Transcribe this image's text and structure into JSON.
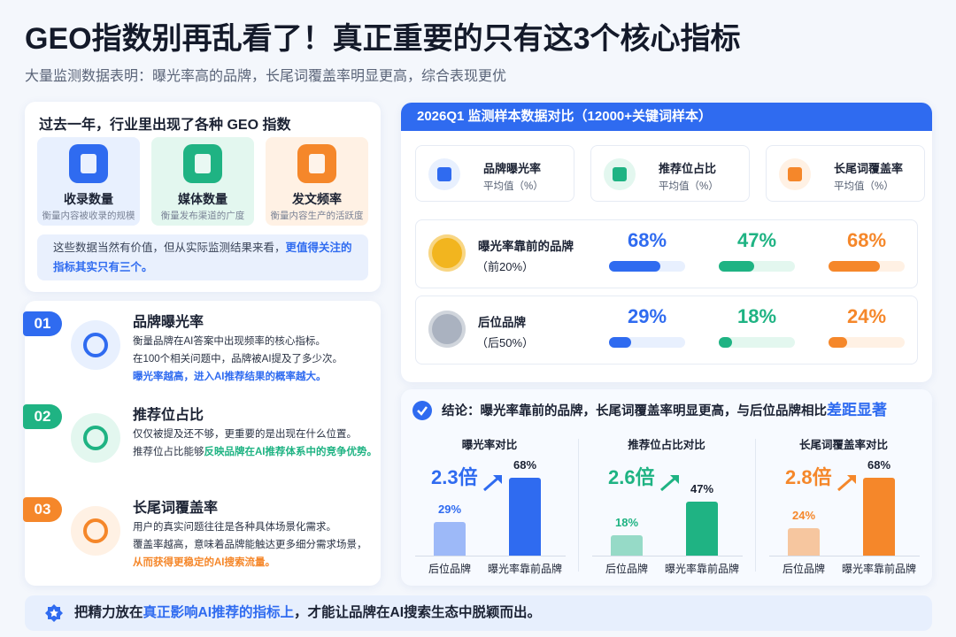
{
  "header": {
    "title": "GEO指数别再乱看了！真正重要的只有这3个核心指标",
    "subtitle": "大量监测数据表明：曝光率高的品牌，长尾词覆盖率明显更高，综合表现更优"
  },
  "intro": {
    "title": "过去一年，行业里出现了各种 GEO 指数",
    "items": [
      {
        "name": "收录数量",
        "desc": "衡量内容被收录的规模"
      },
      {
        "name": "媒体数量",
        "desc": "衡量发布渠道的广度"
      },
      {
        "name": "发文频率",
        "desc": "衡量内容生产的活跃度"
      }
    ],
    "note": "这些数据当然有价值，但从实际监测结果来看，",
    "note_highlight": "更值得关注的指标其实只有三个。"
  },
  "metrics": [
    {
      "num": "01",
      "title": "品牌曝光率",
      "lines": [
        "衡量品牌在AI答案中出现频率的核心指标。",
        "在100个相关问题中，品牌被AI提及了多少次。"
      ],
      "highlight": "曝光率越高，进入AI推荐结果的概率越大。"
    },
    {
      "num": "02",
      "title": "推荐位占比",
      "lines": [
        "仅仅被提及还不够，更重要的是出现在什么位置。"
      ],
      "lead": "推荐位占比能够",
      "highlight": "反映品牌在AI推荐体系中的竞争优势。"
    },
    {
      "num": "03",
      "title": "长尾词覆盖率",
      "lines": [
        "用户的真实问题往往是各种具体场景化需求。",
        "覆盖率越高，意味着品牌能触达更多细分需求场景，"
      ],
      "highlight": "从而获得更稳定的AI搜索流量。"
    }
  ],
  "panel": {
    "title": "2026Q1 监测样本数据对比（12000+关键词样本）",
    "columns": [
      {
        "name": "品牌曝光率",
        "sub": "平均值（%）",
        "color": "#2f6bf0"
      },
      {
        "name": "推荐位占比",
        "sub": "平均值（%）",
        "color": "#1fb383"
      },
      {
        "name": "长尾词覆盖率",
        "sub": "平均值（%）",
        "color": "#f5872a"
      }
    ],
    "rows": [
      {
        "name": "曝光率靠前的品牌",
        "sub": "（前20%）",
        "values": [
          68,
          47,
          68
        ],
        "value_labels": [
          "68%",
          "47%",
          "68%"
        ]
      },
      {
        "name": "后位品牌",
        "sub": "（后50%）",
        "values": [
          29,
          18,
          24
        ],
        "value_labels": [
          "29%",
          "18%",
          "24%"
        ]
      }
    ]
  },
  "conclusion": {
    "text": "结论：曝光率靠前的品牌，长尾词覆盖率明显更高，与后位品牌相比",
    "highlight": "差距显著",
    "charts": [
      {
        "title": "曝光率对比",
        "ratio": "2.3倍",
        "categories": [
          "后位品牌",
          "曝光率靠前品牌"
        ],
        "values": [
          29,
          68
        ],
        "value_labels": [
          "29%",
          "68%"
        ],
        "color": "#2f6bf0"
      },
      {
        "title": "推荐位占比对比",
        "ratio": "2.6倍",
        "categories": [
          "后位品牌",
          "曝光率靠前品牌"
        ],
        "values": [
          18,
          47
        ],
        "value_labels": [
          "18%",
          "47%"
        ],
        "color": "#1fb383"
      },
      {
        "title": "长尾词覆盖率对比",
        "ratio": "2.8倍",
        "categories": [
          "后位品牌",
          "曝光率靠前品牌"
        ],
        "values": [
          24,
          68
        ],
        "value_labels": [
          "24%",
          "68%"
        ],
        "color": "#f5872a"
      }
    ]
  },
  "footer": {
    "lead": "把精力放在",
    "highlight": "真正影响AI推荐的指标上",
    "tail": "，才能让品牌在AI搜索生态中脱颖而出。"
  }
}
